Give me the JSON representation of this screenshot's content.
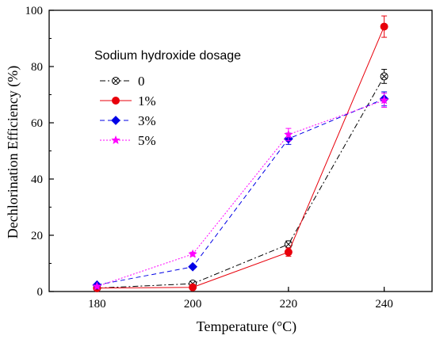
{
  "chart_data": {
    "type": "line",
    "xlabel": "Temperature (°C)",
    "ylabel": "Dechlorination Efficiency (%)",
    "xlim": [
      170,
      250
    ],
    "ylim": [
      0,
      100
    ],
    "x": [
      180,
      200,
      220,
      240
    ],
    "xticks": [
      180,
      200,
      220,
      240
    ],
    "yticks": [
      0,
      20,
      40,
      60,
      80,
      100
    ],
    "grid": false,
    "legend": {
      "title": "Sodium hydroxide dosage",
      "placement": "top-left"
    },
    "series": [
      {
        "name": "0",
        "values": [
          1.2,
          2.8,
          16.8,
          76.5
        ],
        "errors": [
          0.5,
          0.8,
          1.2,
          2.5
        ],
        "color": "#000000",
        "dash": "dashdot",
        "marker": "circle-x"
      },
      {
        "name": "1%",
        "values": [
          1.2,
          1.5,
          14.0,
          94.2
        ],
        "errors": [
          0.4,
          0.6,
          1.5,
          3.8
        ],
        "color": "#e8000b",
        "dash": "solid",
        "marker": "circle"
      },
      {
        "name": "3%",
        "values": [
          2.3,
          8.8,
          54.3,
          68.5
        ],
        "errors": [
          0.5,
          0.6,
          2.0,
          2.5
        ],
        "color": "#0000e6",
        "dash": "dashed",
        "marker": "diamond"
      },
      {
        "name": "5%",
        "values": [
          1.8,
          13.3,
          55.8,
          68.0
        ],
        "errors": [
          0.4,
          0.7,
          2.2,
          2.5
        ],
        "color": "#ff00ff",
        "dash": "dotted",
        "marker": "star"
      }
    ]
  }
}
